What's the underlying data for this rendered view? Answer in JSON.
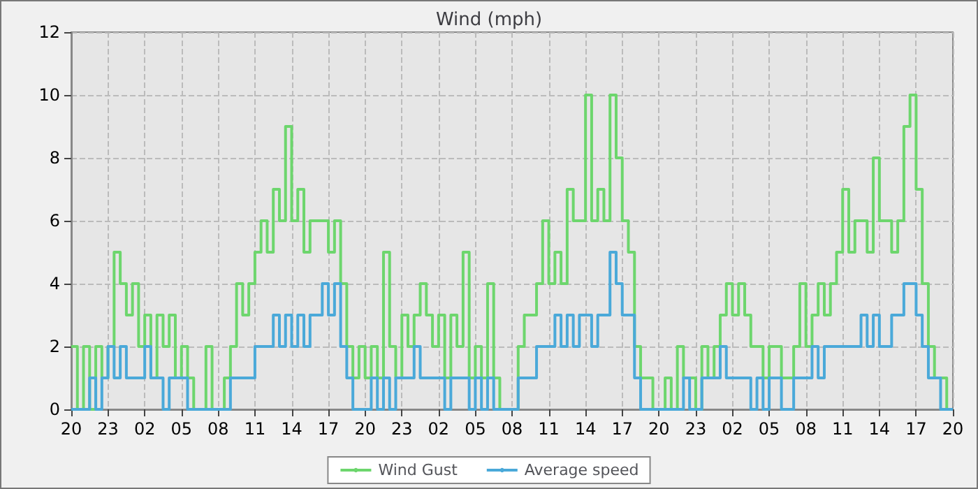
{
  "chart_data": {
    "type": "step",
    "title": "Wind (mph)",
    "categories": [
      "20",
      null,
      null,
      null,
      null,
      null,
      "23",
      null,
      null,
      null,
      null,
      null,
      "02",
      null,
      null,
      null,
      null,
      null,
      "05",
      null,
      null,
      null,
      null,
      null,
      "08",
      null,
      null,
      null,
      null,
      null,
      "11",
      null,
      null,
      null,
      null,
      null,
      "14",
      null,
      null,
      null,
      null,
      null,
      "17",
      null,
      null,
      null,
      null,
      null,
      "20",
      null,
      null,
      null,
      null,
      null,
      "23",
      null,
      null,
      null,
      null,
      null,
      "02",
      null,
      null,
      null,
      null,
      null,
      "05",
      null,
      null,
      null,
      null,
      null,
      "08",
      null,
      null,
      null,
      null,
      null,
      "11",
      null,
      null,
      null,
      null,
      null,
      "14",
      null,
      null,
      null,
      null,
      null,
      "17",
      null,
      null,
      null,
      null,
      null,
      "20",
      null,
      null,
      null,
      null,
      null,
      "23",
      null,
      null,
      null,
      null,
      null,
      "02",
      null,
      null,
      null,
      null,
      null,
      "05",
      null,
      null,
      null,
      null,
      null,
      "08",
      null,
      null,
      null,
      null,
      null,
      "11",
      null,
      null,
      null,
      null,
      null,
      "14",
      null,
      null,
      null,
      null,
      null,
      "17",
      null,
      null,
      null,
      null,
      null,
      "20"
    ],
    "series": [
      {
        "name": "Wind Gust",
        "color": "#6dd66d",
        "values": [
          2,
          0,
          2,
          0,
          2,
          1,
          2,
          5,
          4,
          3,
          4,
          2,
          3,
          1,
          3,
          2,
          3,
          1,
          2,
          1,
          0,
          0,
          2,
          0,
          0,
          1,
          2,
          4,
          3,
          4,
          5,
          6,
          5,
          7,
          6,
          9,
          6,
          7,
          5,
          6,
          6,
          6,
          5,
          6,
          4,
          2,
          1,
          2,
          1,
          2,
          1,
          5,
          2,
          1,
          3,
          2,
          3,
          4,
          3,
          2,
          3,
          1,
          3,
          2,
          5,
          1,
          2,
          1,
          4,
          1,
          0,
          0,
          0,
          2,
          3,
          3,
          4,
          6,
          4,
          5,
          4,
          7,
          6,
          6,
          10,
          6,
          7,
          6,
          10,
          8,
          6,
          5,
          2,
          1,
          1,
          0,
          0,
          1,
          0,
          2,
          1,
          1,
          0,
          2,
          1,
          2,
          3,
          4,
          3,
          4,
          3,
          2,
          2,
          1,
          2,
          2,
          1,
          1,
          2,
          4,
          2,
          3,
          4,
          3,
          4,
          5,
          7,
          5,
          6,
          6,
          5,
          8,
          6,
          6,
          5,
          6,
          9,
          10,
          7,
          4,
          2,
          1,
          1,
          0,
          0
        ]
      },
      {
        "name": "Average speed",
        "color": "#4aa9d9",
        "values": [
          0,
          0,
          0,
          1,
          0,
          1,
          2,
          1,
          2,
          1,
          1,
          1,
          2,
          1,
          1,
          0,
          1,
          1,
          1,
          0,
          0,
          0,
          0,
          0,
          0,
          0,
          1,
          1,
          1,
          1,
          2,
          2,
          2,
          3,
          2,
          3,
          2,
          3,
          2,
          3,
          3,
          4,
          3,
          4,
          2,
          1,
          0,
          0,
          0,
          1,
          0,
          1,
          0,
          1,
          1,
          1,
          2,
          1,
          1,
          1,
          1,
          0,
          1,
          1,
          1,
          0,
          1,
          0,
          1,
          0,
          0,
          0,
          0,
          1,
          1,
          1,
          2,
          2,
          2,
          3,
          2,
          3,
          2,
          3,
          3,
          2,
          3,
          3,
          5,
          4,
          3,
          3,
          1,
          0,
          0,
          0,
          0,
          0,
          0,
          0,
          1,
          0,
          0,
          1,
          1,
          1,
          2,
          1,
          1,
          1,
          1,
          0,
          1,
          0,
          1,
          1,
          0,
          0,
          1,
          1,
          1,
          2,
          1,
          2,
          2,
          2,
          2,
          2,
          2,
          3,
          2,
          3,
          2,
          2,
          3,
          3,
          4,
          4,
          3,
          2,
          1,
          1,
          0,
          0,
          0
        ]
      }
    ],
    "ylim": [
      0,
      12
    ],
    "yticks": [
      0,
      2,
      4,
      6,
      8,
      10,
      12
    ],
    "grid": true,
    "legend": "bottom",
    "marker": "none",
    "line_style": "solid"
  }
}
